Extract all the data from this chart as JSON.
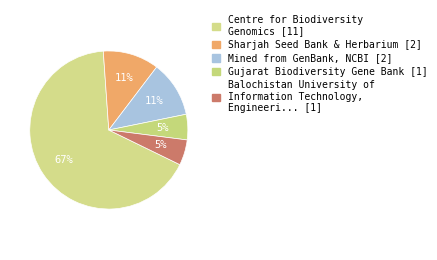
{
  "labels": [
    "Centre for Biodiversity\nGenomics [11]",
    "Sharjah Seed Bank & Herbarium [2]",
    "Mined from GenBank, NCBI [2]",
    "Gujarat Biodiversity Gene Bank [1]",
    "Balochistan University of\nInformation Technology,\nEngineeri... [1]"
  ],
  "values": [
    64,
    11,
    11,
    5,
    5
  ],
  "colors": [
    "#d4dc8a",
    "#f0a868",
    "#a8c4e0",
    "#c4d87a",
    "#cc7a6a"
  ],
  "startangle": -26,
  "background_color": "#ffffff",
  "text_fontsize": 7.0,
  "autopct_fontsize": 7.5
}
